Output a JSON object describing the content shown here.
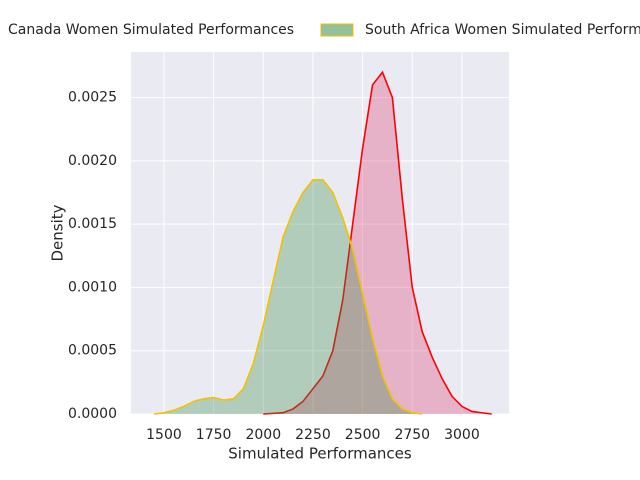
{
  "chart_data": {
    "type": "kde",
    "xlabel": "Simulated Performances",
    "ylabel": "Density",
    "x": [
      1400,
      1450,
      1500,
      1550,
      1600,
      1650,
      1700,
      1750,
      1800,
      1850,
      1900,
      1950,
      2000,
      2050,
      2100,
      2150,
      2200,
      2250,
      2300,
      2350,
      2400,
      2450,
      2500,
      2550,
      2600,
      2650,
      2700,
      2750,
      2800,
      2850,
      2900,
      2950,
      3000,
      3050,
      3100,
      3150
    ],
    "series": [
      {
        "name": "Canada Women Simulated Performances",
        "color": "#ff0000",
        "fill": "#dc3c6e",
        "values": [
          null,
          null,
          null,
          null,
          null,
          null,
          null,
          null,
          null,
          null,
          null,
          null,
          0,
          5e-06,
          1e-05,
          4e-05,
          0.0001,
          0.0002,
          0.0003,
          0.0005,
          0.0009,
          0.0015,
          0.0021,
          0.0026,
          0.0027,
          0.0025,
          0.0017,
          0.001,
          0.00065,
          0.00045,
          0.00028,
          0.00014,
          6e-05,
          2e-05,
          1e-05,
          0
        ]
      },
      {
        "name": "South Africa Women Simulated Performances",
        "color": "#f2c200",
        "fill": "#3c8c4a",
        "values": [
          null,
          0,
          1e-05,
          3e-05,
          6e-05,
          0.0001,
          0.00012,
          0.00013,
          0.00011,
          0.00012,
          0.0002,
          0.0004,
          0.0007,
          0.00105,
          0.0014,
          0.0016,
          0.00175,
          0.00185,
          0.00185,
          0.00175,
          0.00155,
          0.0013,
          0.00095,
          0.0006,
          0.0003,
          0.00012,
          4e-05,
          1e-05,
          0,
          null,
          null,
          null,
          null,
          null,
          null,
          null
        ]
      }
    ],
    "fill_alpha": 0.32,
    "xlim": [
      1334,
      3237
    ],
    "ylim": [
      0,
      0.00286
    ],
    "xticks": [
      1500,
      1750,
      2000,
      2250,
      2500,
      2750,
      3000
    ],
    "yticks": [
      {
        "value": 0,
        "label": "0.0000"
      },
      {
        "value": 0.0005,
        "label": "0.0005"
      },
      {
        "value": 0.001,
        "label": "0.0010"
      },
      {
        "value": 0.0015,
        "label": "0.0015"
      },
      {
        "value": 0.002,
        "label": "0.0020"
      },
      {
        "value": 0.0025,
        "label": "0.0025"
      }
    ],
    "grid": true
  }
}
